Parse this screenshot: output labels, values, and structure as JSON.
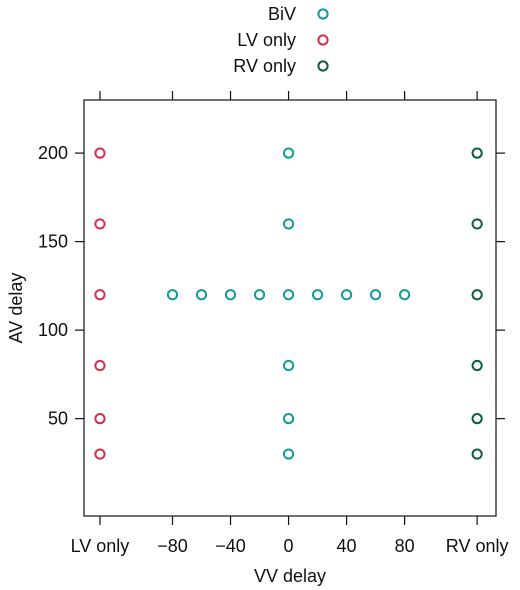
{
  "chart_data": {
    "type": "scatter",
    "xlabel": "VV delay",
    "ylabel": "AV delay",
    "legend_position": "top",
    "grid": false,
    "x_ticks": [
      {
        "pos": -130,
        "label": "LV only"
      },
      {
        "pos": -80,
        "label": "−80"
      },
      {
        "pos": -40,
        "label": "−40"
      },
      {
        "pos": 0,
        "label": "0"
      },
      {
        "pos": 40,
        "label": "40"
      },
      {
        "pos": 80,
        "label": "80"
      },
      {
        "pos": 130,
        "label": "RV only"
      }
    ],
    "y_ticks": [
      50,
      100,
      150,
      200
    ],
    "xlim": [
      -141,
      143
    ],
    "ylim": [
      -5,
      230
    ],
    "series": [
      {
        "name": "BiV",
        "color": "#139a9c",
        "points": [
          {
            "x": 0,
            "y": 30
          },
          {
            "x": 0,
            "y": 50
          },
          {
            "x": 0,
            "y": 80
          },
          {
            "x": 0,
            "y": 160
          },
          {
            "x": 0,
            "y": 200
          },
          {
            "x": -80,
            "y": 120
          },
          {
            "x": -60,
            "y": 120
          },
          {
            "x": -40,
            "y": 120
          },
          {
            "x": -20,
            "y": 120
          },
          {
            "x": 0,
            "y": 120
          },
          {
            "x": 20,
            "y": 120
          },
          {
            "x": 40,
            "y": 120
          },
          {
            "x": 60,
            "y": 120
          },
          {
            "x": 80,
            "y": 120
          }
        ]
      },
      {
        "name": "LV only",
        "color": "#d4304f",
        "points": [
          {
            "x": -130,
            "y": 30
          },
          {
            "x": -130,
            "y": 50
          },
          {
            "x": -130,
            "y": 80
          },
          {
            "x": -130,
            "y": 120
          },
          {
            "x": -130,
            "y": 160
          },
          {
            "x": -130,
            "y": 200
          }
        ]
      },
      {
        "name": "RV only",
        "color": "#0d5e44",
        "points": [
          {
            "x": 130,
            "y": 30
          },
          {
            "x": 130,
            "y": 50
          },
          {
            "x": 130,
            "y": 80
          },
          {
            "x": 130,
            "y": 120
          },
          {
            "x": 130,
            "y": 160
          },
          {
            "x": 130,
            "y": 200
          }
        ]
      }
    ]
  }
}
